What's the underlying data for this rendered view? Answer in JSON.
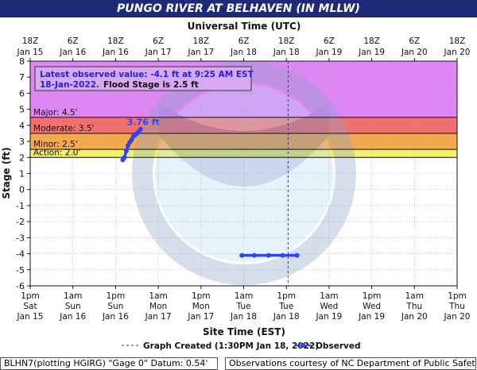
{
  "page": {
    "title": "PUNGO RIVER AT BELHAVEN (IN MLLW)",
    "footer_left": "BLHN7(plotting HGIRG) \"Gage 0\" Datum:  0.54'",
    "footer_right": "Observations courtesy of NC Department of Public Safety"
  },
  "chart_data": {
    "type": "line",
    "title": "PUNGO RIVER AT BELHAVEN (IN MLLW)",
    "top_axis_title": "Universal Time (UTC)",
    "xlabel": "Site Time (EST)",
    "ylabel": "Stage (ft)",
    "ylim": [
      -6,
      8
    ],
    "yticks": [
      -6,
      -5,
      -4,
      -3,
      -2,
      -1,
      0,
      1,
      2,
      3,
      4,
      5,
      6,
      7,
      8
    ],
    "x_unit": "hours since 1pm EST Jan 15 (tick spacing 12 h)",
    "xlim": [
      0,
      120
    ],
    "top_ticks": [
      {
        "l1": "18Z",
        "l2": "Jan 15"
      },
      {
        "l1": "6Z",
        "l2": "Jan 16"
      },
      {
        "l1": "18Z",
        "l2": "Jan 16"
      },
      {
        "l1": "6Z",
        "l2": "Jan 17"
      },
      {
        "l1": "18Z",
        "l2": "Jan 17"
      },
      {
        "l1": "6Z",
        "l2": "Jan 18"
      },
      {
        "l1": "18Z",
        "l2": "Jan 18"
      },
      {
        "l1": "6Z",
        "l2": "Jan 19"
      },
      {
        "l1": "18Z",
        "l2": "Jan 19"
      },
      {
        "l1": "6Z",
        "l2": "Jan 20"
      },
      {
        "l1": "18Z",
        "l2": "Jan 20"
      }
    ],
    "bottom_ticks": [
      {
        "l1": "1pm",
        "l2": "Sat",
        "l3": "Jan 15"
      },
      {
        "l1": "1am",
        "l2": "Sun",
        "l3": "Jan 16"
      },
      {
        "l1": "1pm",
        "l2": "Sun",
        "l3": "Jan 16"
      },
      {
        "l1": "1am",
        "l2": "Mon",
        "l3": "Jan 17"
      },
      {
        "l1": "1pm",
        "l2": "Mon",
        "l3": "Jan 17"
      },
      {
        "l1": "1am",
        "l2": "Tue",
        "l3": "Jan 18"
      },
      {
        "l1": "1pm",
        "l2": "Tue",
        "l3": "Jan 18"
      },
      {
        "l1": "1am",
        "l2": "Wed",
        "l3": "Jan 19"
      },
      {
        "l1": "1pm",
        "l2": "Wed",
        "l3": "Jan 19"
      },
      {
        "l1": "1am",
        "l2": "Thu",
        "l3": "Jan 20"
      },
      {
        "l1": "1pm",
        "l2": "Thu",
        "l3": "Jan 20"
      }
    ],
    "flood_categories": [
      {
        "name": "Major",
        "label": "Major: 4.5'",
        "from": 4.5,
        "to": 8,
        "color": "#dd88f2"
      },
      {
        "name": "Moderate",
        "label": "Moderate: 3.5'",
        "from": 3.5,
        "to": 4.5,
        "color": "#f07070"
      },
      {
        "name": "Minor",
        "label": "Minor: 2.5'",
        "from": 2.5,
        "to": 3.5,
        "color": "#f5a84c"
      },
      {
        "name": "Action",
        "label": "Action: 2.0'",
        "from": 2.0,
        "to": 2.5,
        "color": "#f2f26a"
      }
    ],
    "series": [
      {
        "name": "Observed",
        "color": "#3344ee",
        "x": [
          26.0,
          26.5,
          27.0,
          27.5,
          28.0,
          28.5,
          29.0,
          29.5,
          30.0,
          30.5,
          31.0
        ],
        "values": [
          1.85,
          2.0,
          2.4,
          2.75,
          2.95,
          3.1,
          3.3,
          3.4,
          3.5,
          3.6,
          3.76
        ]
      },
      {
        "name": "Observed",
        "color": "#3344ee",
        "x": [
          59.5,
          63.0,
          67.0,
          71.0,
          75.0
        ],
        "values": [
          -4.1,
          -4.1,
          -4.1,
          -4.1,
          -4.1
        ]
      }
    ],
    "peak_label": {
      "text": "3.76 ft",
      "x": 31.0,
      "y": 3.76
    },
    "graph_created_x": 72.5,
    "info_box": {
      "line1": "Latest observed value:  -4.1  ft at 9:25 AM EST",
      "line2_date": "18-Jan-2022.",
      "line2_flood": "Flood Stage is 2.5 ft"
    },
    "legend": {
      "graph_created": "Graph Created (1:30PM Jan 18, 2022)",
      "observed": "Observed"
    },
    "grid": true
  },
  "colors": {
    "title_bg": "#1e2a78",
    "observed": "#3344ee",
    "info_text": "#2222dd"
  }
}
